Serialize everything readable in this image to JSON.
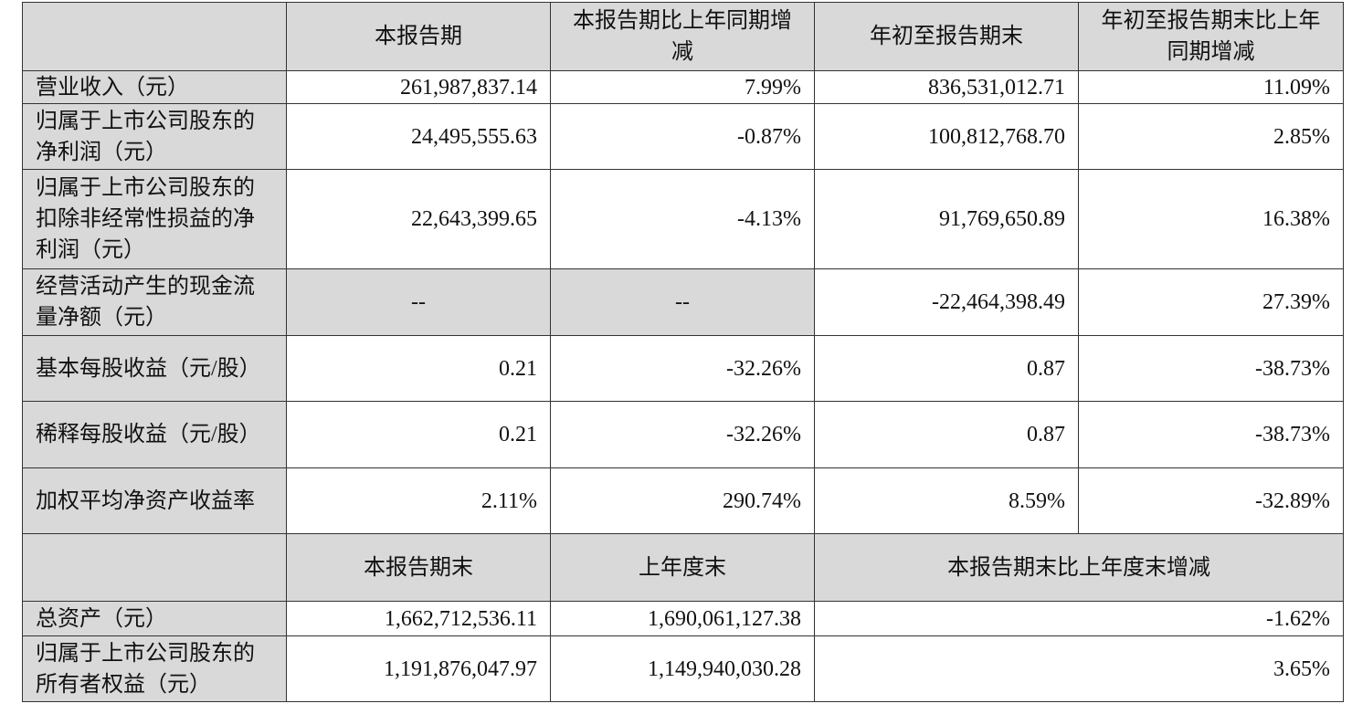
{
  "header": {
    "col1": "本报告期",
    "col2": "本报告期比上年同期增减",
    "col3": "年初至报告期末",
    "col4": "年初至报告期末比上年同期增减"
  },
  "rows": [
    {
      "label": "营业收入（元）",
      "v1": "261,987,837.14",
      "v2": "7.99%",
      "v3": "836,531,012.71",
      "v4": "11.09%"
    },
    {
      "label": "归属于上市公司股东的净利润（元）",
      "v1": "24,495,555.63",
      "v2": "-0.87%",
      "v3": "100,812,768.70",
      "v4": "2.85%"
    },
    {
      "label": "归属于上市公司股东的扣除非经常性损益的净利润（元）",
      "v1": "22,643,399.65",
      "v2": "-4.13%",
      "v3": "91,769,650.89",
      "v4": "16.38%"
    },
    {
      "label": "经营活动产生的现金流量净额（元）",
      "v1": "--",
      "v2": "--",
      "v3": "-22,464,398.49",
      "v4": "27.39%"
    },
    {
      "label": "基本每股收益（元/股）",
      "v1": "0.21",
      "v2": "-32.26%",
      "v3": "0.87",
      "v4": "-38.73%"
    },
    {
      "label": "稀释每股收益（元/股）",
      "v1": "0.21",
      "v2": "-32.26%",
      "v3": "0.87",
      "v4": "-38.73%"
    },
    {
      "label": "加权平均净资产收益率",
      "v1": "2.11%",
      "v2": "290.74%",
      "v3": "8.59%",
      "v4": "-32.89%"
    }
  ],
  "header2": {
    "col1": "本报告期末",
    "col2": "上年度末",
    "col3": "本报告期末比上年度末增减"
  },
  "rows2": [
    {
      "label": "总资产（元）",
      "v1": "1,662,712,536.11",
      "v2": "1,690,061,127.38",
      "v3": "-1.62%"
    },
    {
      "label": "归属于上市公司股东的所有者权益（元）",
      "v1": "1,191,876,047.97",
      "v2": "1,149,940,030.28",
      "v3": "3.65%"
    }
  ]
}
